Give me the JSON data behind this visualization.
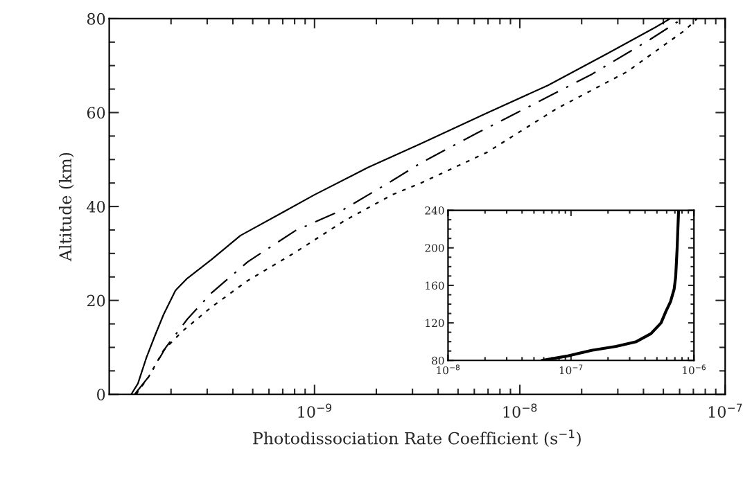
{
  "chart_data": [
    {
      "type": "line",
      "xlabel": "Photodissociation Rate Coefficient (s$^{−1}$)",
      "ylabel": "Altitude (km)",
      "log": "x",
      "xlim": [
        1e-10,
        1e-07
      ],
      "ylim": [
        0,
        80
      ],
      "xticks": [
        {
          "value": 1e-09,
          "label": "10$^{−9}$"
        },
        {
          "value": 1e-08,
          "label": "10$^{−8}$"
        },
        {
          "value": 1e-07,
          "label": "10$^{−7}$"
        }
      ],
      "yticks": [
        0,
        20,
        40,
        60,
        80
      ],
      "grid": false,
      "series": [
        {
          "color": "#000000",
          "line_style": "solid",
          "x": [
            1.28e-10,
            1.38e-10,
            1.52e-10,
            1.67e-10,
            1.84e-10,
            2.1e-10,
            2.4e-10,
            3.15e-10,
            4.35e-10,
            7.1e-10,
            1e-09,
            1.82e-09,
            3.3e-09,
            6.9e-09,
            1.37e-08,
            2.7e-08,
            4.55e-08,
            5.4e-08
          ],
          "values": [
            0,
            2.3,
            7.9,
            12.5,
            17,
            22.1,
            24.7,
            28.7,
            33.8,
            38.9,
            42.5,
            48.3,
            53.4,
            59.9,
            65.8,
            72.7,
            78.1,
            80
          ]
        },
        {
          "color": "#000000",
          "line_style": "dashed",
          "x": [
            1.33e-10,
            1.56e-10,
            1.88e-10,
            2.4e-10,
            3.15e-10,
            4.72e-10,
            8.1e-10,
            1.39e-09,
            2.39e-09,
            3.3e-09,
            6.1e-09,
            1.17e-08,
            2.25e-08,
            4.32e-08,
            6.2e-08
          ],
          "values": [
            0,
            3.8,
            9.9,
            16,
            21.6,
            28.2,
            34.9,
            39.4,
            45.5,
            49.3,
            55.5,
            61.8,
            68.2,
            75.6,
            80
          ]
        },
        {
          "color": "#000000",
          "line_style": "dotted",
          "x": [
            1.35e-10,
            1.56e-10,
            1.84e-10,
            2.28e-10,
            3.15e-10,
            4.72e-10,
            8.1e-10,
            1.39e-09,
            2.39e-09,
            3.3e-09,
            6.9e-09,
            1.52e-08,
            3.33e-08,
            6.4e-08,
            7.3e-08
          ],
          "values": [
            0,
            3.8,
            9.4,
            13.5,
            18.6,
            24.2,
            30.3,
            36.9,
            42.5,
            45,
            51.5,
            60.9,
            68.7,
            77.6,
            80
          ]
        }
      ]
    },
    {
      "type": "line",
      "log": "x",
      "xlim": [
        1e-08,
        1e-06
      ],
      "ylim": [
        80,
        240
      ],
      "xticks": [
        {
          "value": 1e-08,
          "label": "10$^{−8}$"
        },
        {
          "value": 1e-07,
          "label": "10$^{−7}$"
        },
        {
          "value": 1e-06,
          "label": "10$^{−6}$"
        }
      ],
      "yticks": [
        80,
        120,
        160,
        200,
        240
      ],
      "grid": false,
      "series": [
        {
          "color": "#000000",
          "line_style": "solid",
          "x": [
            5.8e-08,
            9.2e-08,
            1.47e-07,
            2.33e-07,
            3.4e-07,
            4.47e-07,
            5.4e-07,
            5.9e-07,
            6.45e-07,
            6.9e-07,
            7.1e-07,
            7.3e-07,
            7.5e-07
          ],
          "values": [
            80,
            84.5,
            90.7,
            95,
            100,
            108.5,
            120,
            132,
            142.7,
            156,
            169,
            200,
            240
          ]
        }
      ]
    }
  ]
}
